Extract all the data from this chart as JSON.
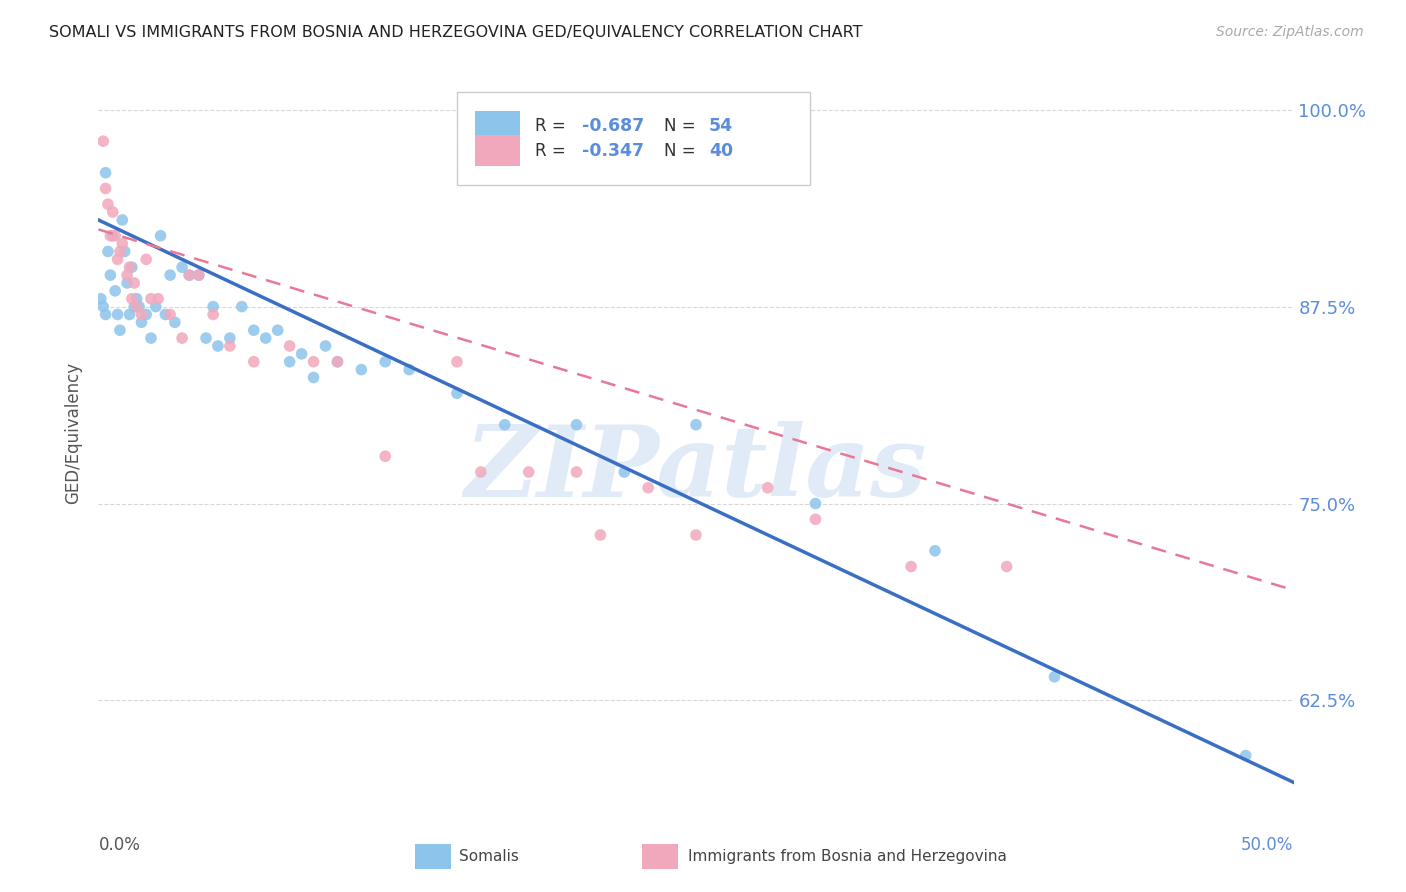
{
  "title": "SOMALI VS IMMIGRANTS FROM BOSNIA AND HERZEGOVINA GED/EQUIVALENCY CORRELATION CHART",
  "source": "Source: ZipAtlas.com",
  "ylabel": "GED/Equivalency",
  "somali_label": "Somalis",
  "bosnia_label": "Immigrants from Bosnia and Herzegovina",
  "R_somali": -0.687,
  "N_somali": 54,
  "R_bosnia": -0.347,
  "N_bosnia": 40,
  "xmin": 0.0,
  "xmax": 0.5,
  "ymin": 0.56,
  "ymax": 1.03,
  "ytick_positions": [
    0.625,
    0.75,
    0.875,
    1.0
  ],
  "ytick_labels": [
    "62.5%",
    "75.0%",
    "87.5%",
    "100.0%"
  ],
  "somali_color": "#8DC4EC",
  "bosnia_color": "#F2A8BC",
  "trendline_somali_color": "#3A6FC4",
  "trendline_bosnia_color": "#E87898",
  "watermark": "ZIPatlas",
  "watermark_color": "#C5D8F0",
  "background_color": "#ffffff",
  "grid_color": "#d8d8d8",
  "right_axis_color": "#5B8DD9",
  "somali_scatter_x": [
    0.001,
    0.002,
    0.003,
    0.003,
    0.004,
    0.005,
    0.006,
    0.007,
    0.008,
    0.009,
    0.01,
    0.011,
    0.012,
    0.013,
    0.014,
    0.015,
    0.016,
    0.017,
    0.018,
    0.02,
    0.022,
    0.024,
    0.026,
    0.028,
    0.03,
    0.032,
    0.035,
    0.038,
    0.042,
    0.045,
    0.048,
    0.05,
    0.055,
    0.06,
    0.065,
    0.07,
    0.075,
    0.08,
    0.085,
    0.09,
    0.095,
    0.1,
    0.11,
    0.12,
    0.13,
    0.15,
    0.17,
    0.2,
    0.22,
    0.25,
    0.3,
    0.35,
    0.4,
    0.48
  ],
  "somali_scatter_y": [
    0.88,
    0.875,
    0.96,
    0.87,
    0.91,
    0.895,
    0.92,
    0.885,
    0.87,
    0.86,
    0.93,
    0.91,
    0.89,
    0.87,
    0.9,
    0.875,
    0.88,
    0.875,
    0.865,
    0.87,
    0.855,
    0.875,
    0.92,
    0.87,
    0.895,
    0.865,
    0.9,
    0.895,
    0.895,
    0.855,
    0.875,
    0.85,
    0.855,
    0.875,
    0.86,
    0.855,
    0.86,
    0.84,
    0.845,
    0.83,
    0.85,
    0.84,
    0.835,
    0.84,
    0.835,
    0.82,
    0.8,
    0.8,
    0.77,
    0.8,
    0.75,
    0.72,
    0.64,
    0.59
  ],
  "bosnia_scatter_x": [
    0.002,
    0.003,
    0.004,
    0.005,
    0.006,
    0.007,
    0.008,
    0.009,
    0.01,
    0.012,
    0.013,
    0.014,
    0.015,
    0.016,
    0.018,
    0.02,
    0.022,
    0.025,
    0.03,
    0.035,
    0.038,
    0.042,
    0.048,
    0.055,
    0.065,
    0.08,
    0.09,
    0.1,
    0.12,
    0.15,
    0.16,
    0.18,
    0.2,
    0.21,
    0.23,
    0.25,
    0.28,
    0.3,
    0.34,
    0.38
  ],
  "bosnia_scatter_y": [
    0.98,
    0.95,
    0.94,
    0.92,
    0.935,
    0.92,
    0.905,
    0.91,
    0.915,
    0.895,
    0.9,
    0.88,
    0.89,
    0.875,
    0.87,
    0.905,
    0.88,
    0.88,
    0.87,
    0.855,
    0.895,
    0.895,
    0.87,
    0.85,
    0.84,
    0.85,
    0.84,
    0.84,
    0.78,
    0.84,
    0.77,
    0.77,
    0.77,
    0.73,
    0.76,
    0.73,
    0.76,
    0.74,
    0.71,
    0.71
  ],
  "somali_line_x0": 0.0,
  "somali_line_y0": 0.93,
  "somali_line_x1": 0.5,
  "somali_line_y1": 0.573,
  "bosnia_line_x0": 0.0,
  "bosnia_line_y0": 0.924,
  "bosnia_line_x1": 0.5,
  "bosnia_line_y1": 0.695
}
